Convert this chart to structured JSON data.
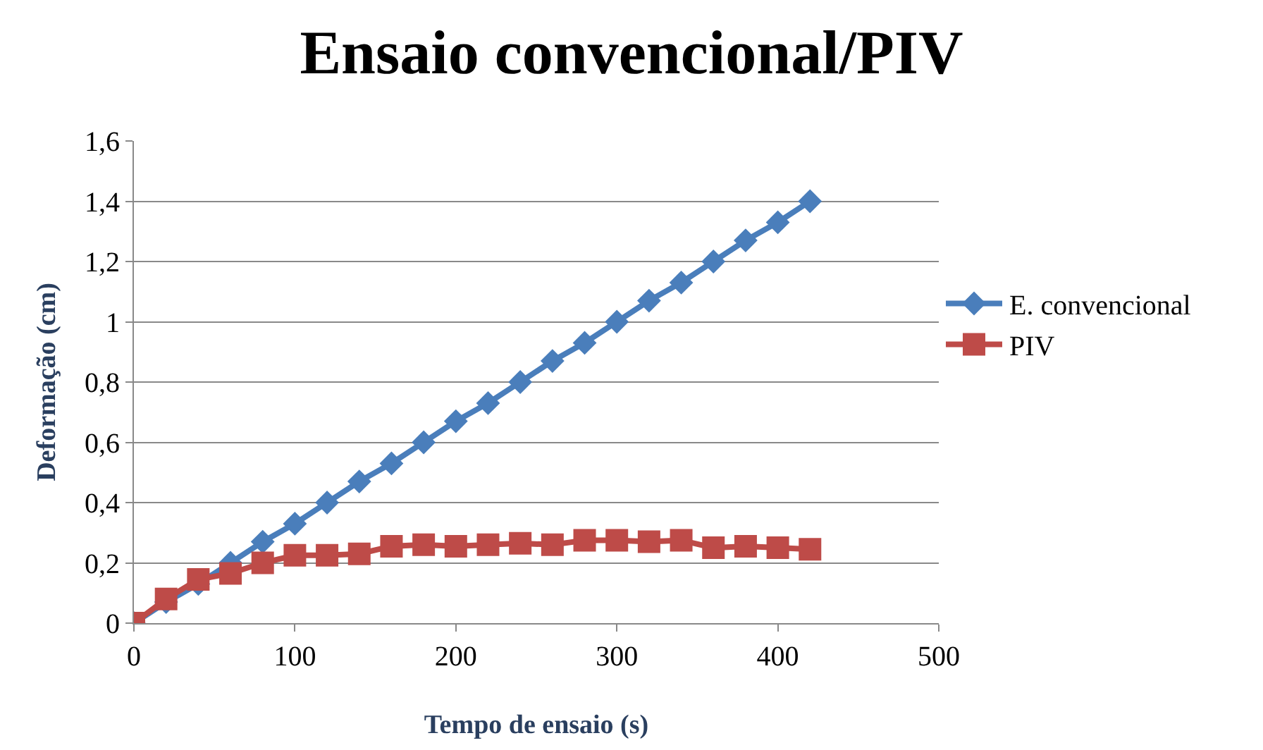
{
  "chart_data": {
    "type": "line",
    "title": "Ensaio convencional/PIV",
    "xlabel": "Tempo de ensaio (s)",
    "ylabel": "Deformação (cm)",
    "x": [
      0,
      20,
      40,
      60,
      80,
      100,
      120,
      140,
      160,
      180,
      200,
      220,
      240,
      260,
      280,
      300,
      320,
      340,
      360,
      380,
      400,
      420
    ],
    "series": [
      {
        "name": "E. convencional",
        "color": "#4a7ebb",
        "marker": "diamond",
        "values": [
          0,
          0.07,
          0.13,
          0.2,
          0.27,
          0.33,
          0.4,
          0.47,
          0.53,
          0.6,
          0.67,
          0.73,
          0.8,
          0.87,
          0.93,
          1.0,
          1.07,
          1.13,
          1.2,
          1.27,
          1.33,
          1.4
        ]
      },
      {
        "name": "PIV",
        "color": "#be4b48",
        "marker": "square",
        "values": [
          0,
          0.08,
          0.145,
          0.165,
          0.2,
          0.225,
          0.225,
          0.23,
          0.255,
          0.26,
          0.255,
          0.26,
          0.265,
          0.26,
          0.275,
          0.275,
          0.27,
          0.275,
          0.25,
          0.255,
          0.25,
          0.245
        ]
      }
    ],
    "xlim": [
      0,
      500
    ],
    "xticks": [
      0,
      100,
      200,
      300,
      400,
      500
    ],
    "ylim": [
      0,
      1.6
    ],
    "yticks": [
      {
        "value": 0,
        "label": "0"
      },
      {
        "value": 0.2,
        "label": "0,2"
      },
      {
        "value": 0.4,
        "label": "0,4"
      },
      {
        "value": 0.6,
        "label": "0,6"
      },
      {
        "value": 0.8,
        "label": "0,8"
      },
      {
        "value": 1,
        "label": "1"
      },
      {
        "value": 1.2,
        "label": "1,2"
      },
      {
        "value": 1.4,
        "label": "1,4"
      },
      {
        "value": 1.6,
        "label": "1,6"
      }
    ],
    "grid": "y",
    "legend": "right"
  }
}
